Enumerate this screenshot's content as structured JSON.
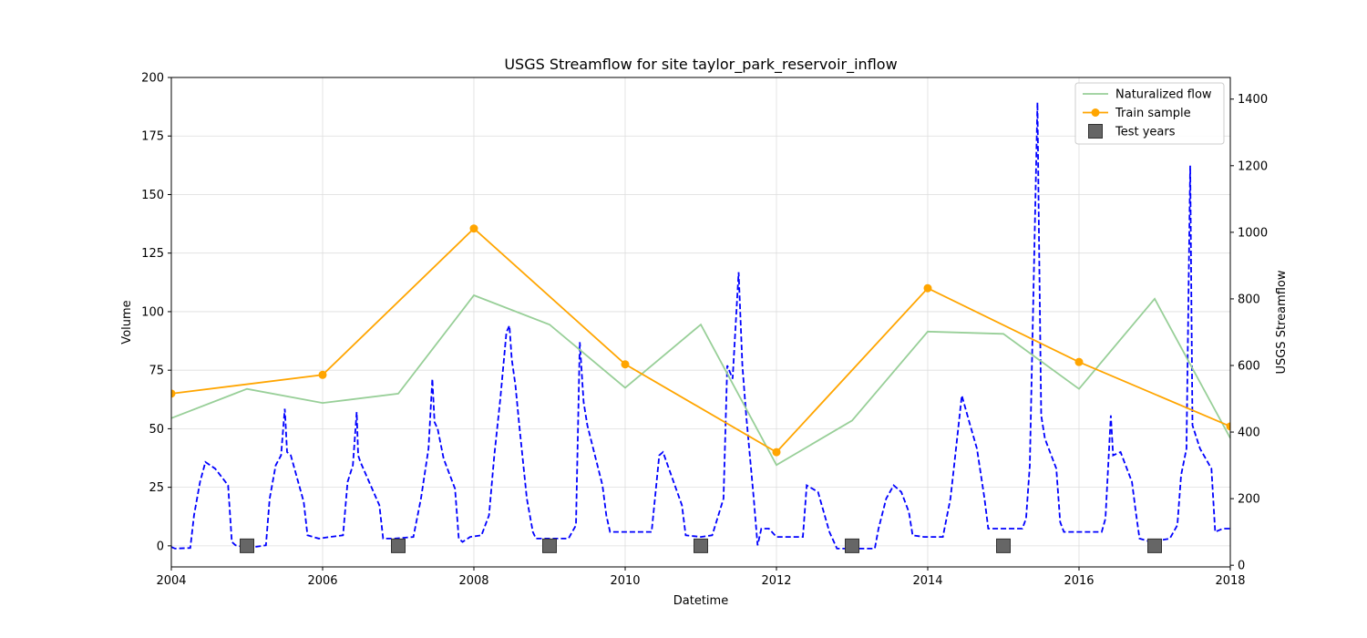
{
  "chart_data": {
    "type": "line",
    "title": "USGS Streamflow for site taylor_park_reservoir_inflow",
    "xlabel": "Datetime",
    "ylabel": "Volume",
    "y2label": "USGS Streamflow",
    "xlim": [
      2004,
      2018
    ],
    "ylim": [
      -9,
      200
    ],
    "y2lim": [
      -5,
      1465
    ],
    "x_ticks": [
      2004,
      2006,
      2008,
      2010,
      2012,
      2014,
      2016,
      2018
    ],
    "y_ticks": [
      0,
      25,
      50,
      75,
      100,
      125,
      150,
      175,
      200
    ],
    "y2_ticks": [
      0,
      200,
      400,
      600,
      800,
      1000,
      1200,
      1400
    ],
    "grid": true,
    "legend_position": "top-right",
    "legend": [
      "Naturalized flow",
      "Train sample",
      "Test years"
    ],
    "series": [
      {
        "name": "Naturalized flow",
        "color": "#98cf98",
        "axis": "left",
        "x": [
          2004,
          2005,
          2006,
          2007,
          2008,
          2009,
          2010,
          2011,
          2012,
          2013,
          2014,
          2015,
          2016,
          2017,
          2018
        ],
        "values": [
          54.5,
          67,
          61,
          65,
          107,
          94.5,
          67.5,
          94.5,
          34.5,
          53.5,
          91.5,
          90.5,
          67,
          105.5,
          46
        ]
      },
      {
        "name": "Train sample",
        "color": "#ffa500",
        "axis": "left",
        "marker": "circle",
        "x": [
          2004,
          2006,
          2008,
          2010,
          2012,
          2014,
          2016,
          2018
        ],
        "values": [
          65,
          73,
          135.5,
          77.5,
          40,
          110,
          78.5,
          51
        ]
      },
      {
        "name": "Test years",
        "color": "#666666",
        "axis": "left",
        "marker": "square",
        "x": [
          2005,
          2007,
          2009,
          2011,
          2013,
          2015,
          2017
        ],
        "values": [
          0,
          0,
          0,
          0,
          0,
          0,
          0
        ]
      },
      {
        "name": "USGS Streamflow",
        "color": "#0000ff",
        "axis": "right",
        "style": "dashed",
        "x": [
          2004.0,
          2004.05,
          2004.25,
          2004.3,
          2004.38,
          2004.45,
          2004.58,
          2004.75,
          2004.8,
          2004.85,
          2004.95,
          2005.1,
          2005.25,
          2005.3,
          2005.38,
          2005.45,
          2005.5,
          2005.53,
          2005.58,
          2005.75,
          2005.8,
          2005.95,
          2006.1,
          2006.27,
          2006.33,
          2006.4,
          2006.45,
          2006.47,
          2006.5,
          2006.75,
          2006.8,
          2006.85,
          2006.95,
          2007.2,
          2007.3,
          2007.4,
          2007.45,
          2007.48,
          2007.52,
          2007.6,
          2007.75,
          2007.8,
          2007.85,
          2007.95,
          2008.1,
          2008.2,
          2008.27,
          2008.35,
          2008.43,
          2008.47,
          2008.5,
          2008.55,
          2008.6,
          2008.7,
          2008.78,
          2008.82,
          2009.0,
          2009.25,
          2009.35,
          2009.4,
          2009.45,
          2009.5,
          2009.7,
          2009.75,
          2009.8,
          2010.0,
          2010.35,
          2010.45,
          2010.5,
          2010.75,
          2010.8,
          2011.0,
          2011.15,
          2011.3,
          2011.35,
          2011.42,
          2011.5,
          2011.55,
          2011.6,
          2011.7,
          2011.75,
          2011.8,
          2011.9,
          2012.0,
          2012.35,
          2012.4,
          2012.55,
          2012.7,
          2012.8,
          2012.95,
          2013.3,
          2013.35,
          2013.45,
          2013.55,
          2013.65,
          2013.75,
          2013.8,
          2013.95,
          2014.2,
          2014.3,
          2014.35,
          2014.45,
          2014.55,
          2014.65,
          2014.75,
          2014.8,
          2014.95,
          2015.25,
          2015.3,
          2015.35,
          2015.45,
          2015.47,
          2015.5,
          2015.55,
          2015.7,
          2015.75,
          2015.8,
          2016.0,
          2016.3,
          2016.35,
          2016.42,
          2016.45,
          2016.55,
          2016.7,
          2016.75,
          2016.8,
          2016.95,
          2017.2,
          2017.3,
          2017.35,
          2017.42,
          2017.47,
          2017.5,
          2017.6,
          2017.75,
          2017.8,
          2017.9,
          2018.0
        ],
        "values": [
          55,
          50,
          52,
          150,
          250,
          310,
          290,
          240,
          70,
          60,
          55,
          55,
          60,
          200,
          300,
          330,
          470,
          340,
          330,
          190,
          90,
          80,
          85,
          90,
          250,
          300,
          460,
          330,
          310,
          180,
          80,
          80,
          80,
          85,
          200,
          350,
          560,
          430,
          410,
          320,
          230,
          80,
          70,
          85,
          90,
          150,
          330,
          500,
          700,
          720,
          620,
          540,
          420,
          200,
          100,
          80,
          80,
          80,
          120,
          670,
          490,
          420,
          240,
          150,
          100,
          100,
          100,
          330,
          340,
          180,
          90,
          85,
          90,
          200,
          600,
          560,
          880,
          600,
          450,
          200,
          60,
          110,
          110,
          85,
          85,
          240,
          220,
          100,
          50,
          50,
          50,
          110,
          200,
          240,
          220,
          160,
          90,
          85,
          85,
          200,
          300,
          510,
          430,
          350,
          200,
          110,
          110,
          110,
          140,
          300,
          1390,
          1000,
          450,
          380,
          290,
          130,
          100,
          100,
          100,
          140,
          450,
          330,
          340,
          250,
          160,
          80,
          70,
          80,
          120,
          270,
          350,
          1200,
          420,
          350,
          290,
          100,
          110,
          110
        ]
      }
    ]
  }
}
